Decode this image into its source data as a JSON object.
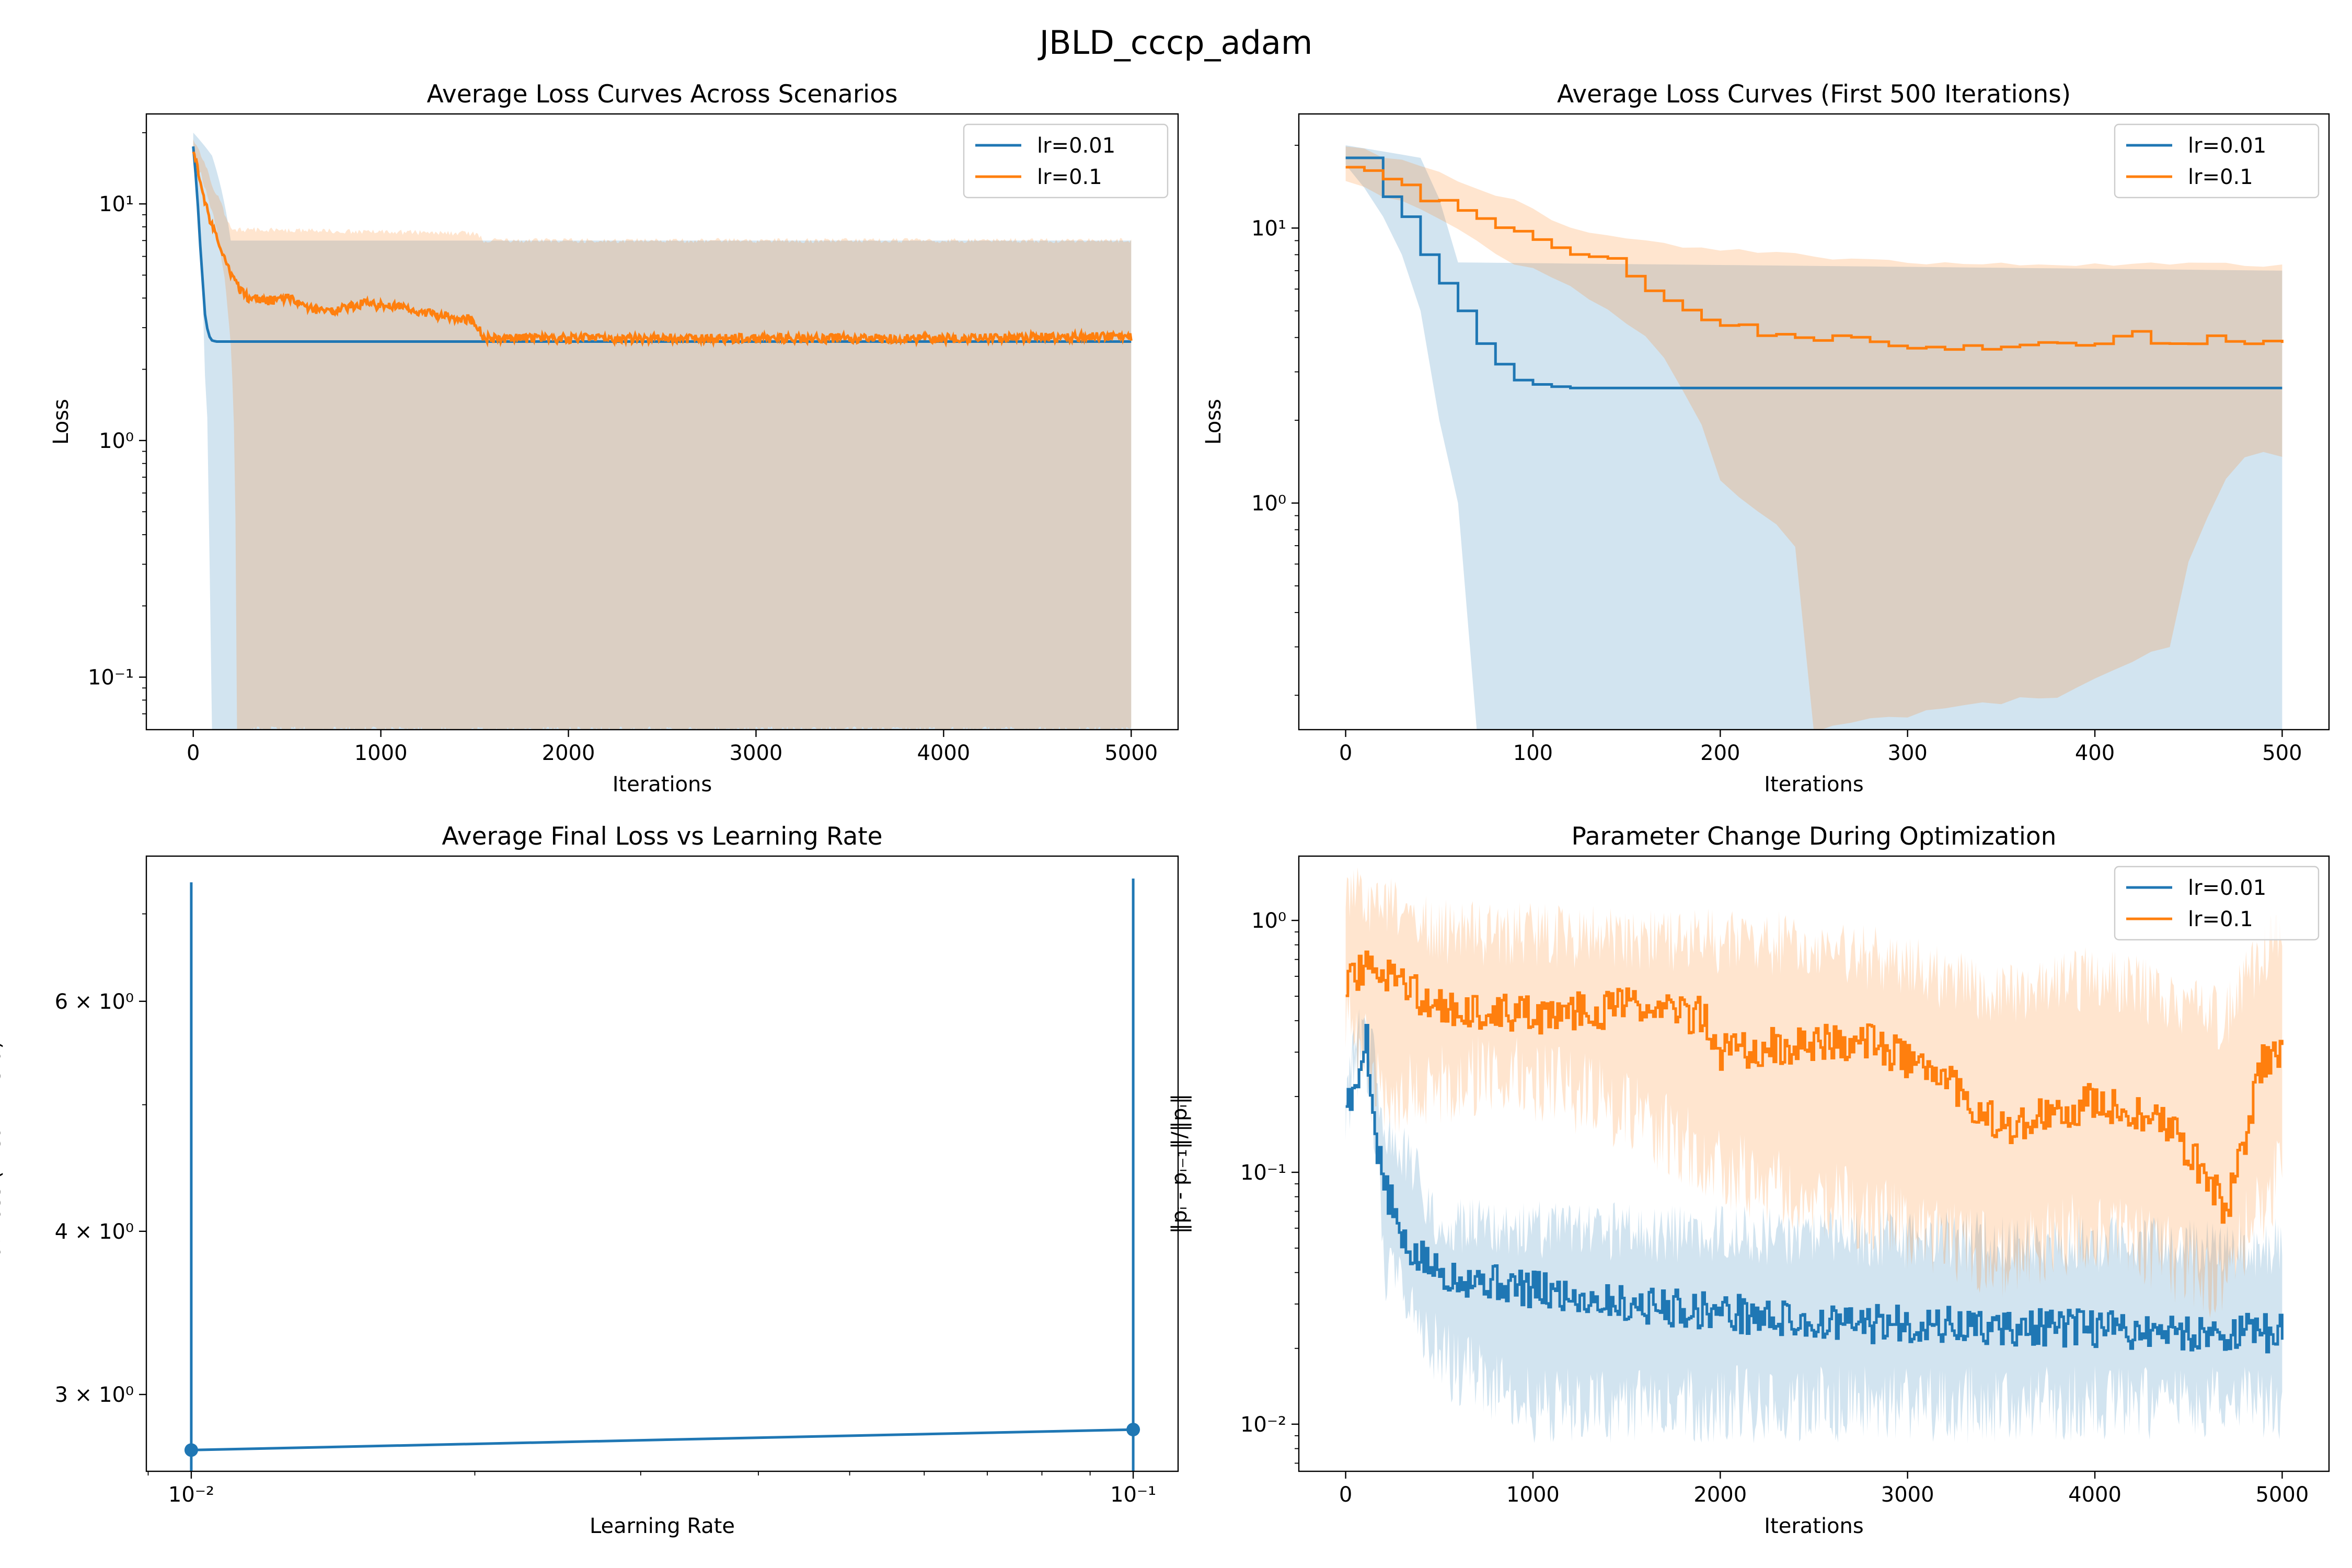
{
  "figure_title": "JBLD_cccp_adam",
  "colors": {
    "series_a": "#1f77b4",
    "series_b": "#ff7f0e",
    "band_a": "#c6dcee",
    "band_b": "#ffd8b5",
    "overlap": "#ddd1c3"
  },
  "chart_data": [
    {
      "id": "panel1",
      "type": "line",
      "title": "Average Loss Curves Across Scenarios",
      "xlabel": "Iterations",
      "ylabel": "Loss",
      "xscale": "linear",
      "yscale": "log",
      "xlim": [
        -250,
        5250
      ],
      "ylim": [
        0.06,
        24
      ],
      "xticks": [
        0,
        1000,
        2000,
        3000,
        4000,
        5000
      ],
      "xtick_labels": [
        "0",
        "1000",
        "2000",
        "3000",
        "4000",
        "5000"
      ],
      "yticks": [
        0.1,
        1,
        10
      ],
      "ytick_labels": [
        "10⁻¹",
        "10⁰",
        "10¹"
      ],
      "legend_position": "top-right",
      "series": [
        {
          "name": "lr=0.01",
          "color": "#1f77b4",
          "x": [
            0,
            20,
            40,
            60,
            80,
            100,
            120,
            5000
          ],
          "y": [
            17.5,
            11,
            6,
            3.5,
            2.8,
            2.65,
            2.62,
            2.62
          ],
          "band_upper": [
            [
              0,
              20
            ],
            [
              100,
              16
            ],
            [
              200,
              7
            ],
            [
              5000,
              7
            ]
          ],
          "band_lower": [
            [
              0,
              15
            ],
            [
              60,
              2
            ],
            [
              80,
              1
            ],
            [
              90,
              0.06
            ],
            [
              5000,
              0.06
            ]
          ]
        },
        {
          "name": "lr=0.1",
          "color": "#ff7f0e",
          "x": [
            0,
            50,
            100,
            150,
            200,
            250,
            300,
            400,
            500,
            600,
            700,
            800,
            900,
            1000,
            1100,
            1200,
            1300,
            1400,
            1500,
            1550,
            1600,
            2000,
            3000,
            4000,
            5000
          ],
          "y": [
            17,
            11,
            8,
            6.5,
            5,
            4.3,
            4.0,
            3.9,
            4.0,
            3.7,
            3.5,
            3.6,
            3.8,
            3.7,
            3.7,
            3.5,
            3.4,
            3.3,
            3.2,
            2.7,
            2.7,
            2.7,
            2.7,
            2.7,
            2.75
          ],
          "band_upper": [
            [
              0,
              19
            ],
            [
              100,
              12
            ],
            [
              200,
              7.8
            ],
            [
              1500,
              7.5
            ],
            [
              1550,
              7
            ],
            [
              5000,
              7
            ]
          ],
          "band_lower": [
            [
              0,
              16
            ],
            [
              150,
              6
            ],
            [
              200,
              2.5
            ],
            [
              230,
              0.06
            ],
            [
              5000,
              0.06
            ]
          ]
        }
      ]
    },
    {
      "id": "panel2",
      "type": "line",
      "title": "Average Loss Curves (First 500 Iterations)",
      "xlabel": "Iterations",
      "ylabel": "Loss",
      "xscale": "linear",
      "yscale": "log",
      "xlim": [
        -25,
        525
      ],
      "ylim": [
        0.15,
        26
      ],
      "xticks": [
        0,
        100,
        200,
        300,
        400,
        500
      ],
      "xtick_labels": [
        "0",
        "100",
        "200",
        "300",
        "400",
        "500"
      ],
      "yticks": [
        1,
        10
      ],
      "ytick_labels": [
        "10⁰",
        "10¹"
      ],
      "legend_position": "top-right",
      "series": [
        {
          "name": "lr=0.01",
          "color": "#1f77b4",
          "x": [
            0,
            10,
            20,
            30,
            40,
            50,
            60,
            70,
            80,
            90,
            100,
            110,
            120,
            500
          ],
          "y": [
            18,
            18,
            13,
            11,
            8,
            6.3,
            5,
            3.8,
            3.2,
            2.8,
            2.7,
            2.65,
            2.62,
            2.62
          ],
          "band_upper": [
            [
              0,
              20
            ],
            [
              40,
              18
            ],
            [
              60,
              7.5
            ],
            [
              500,
              7
            ]
          ],
          "band_lower": [
            [
              0,
              17
            ],
            [
              30,
              8
            ],
            [
              50,
              2
            ],
            [
              60,
              1
            ],
            [
              70,
              0.15
            ],
            [
              500,
              0.15
            ]
          ]
        },
        {
          "name": "lr=0.1",
          "color": "#ff7f0e",
          "x": [
            0,
            20,
            40,
            60,
            80,
            100,
            120,
            140,
            160,
            180,
            200,
            220,
            240,
            260,
            280,
            300,
            320,
            340,
            360,
            380,
            400,
            420,
            440,
            460,
            480,
            500
          ],
          "y": [
            17,
            15,
            13,
            12,
            10,
            9,
            8,
            7.5,
            6,
            5,
            4.5,
            4.2,
            4.0,
            4.1,
            3.8,
            3.6,
            3.7,
            3.6,
            3.9,
            3.8,
            3.9,
            4.1,
            3.8,
            4.0,
            3.8,
            3.7
          ],
          "band_upper": [
            [
              0,
              20
            ],
            [
              60,
              15
            ],
            [
              120,
              10
            ],
            [
              180,
              8.5
            ],
            [
              300,
              7.5
            ],
            [
              500,
              7.3
            ]
          ],
          "band_lower": [
            [
              0,
              15
            ],
            [
              80,
              8
            ],
            [
              160,
              4
            ],
            [
              200,
              1.2
            ],
            [
              240,
              0.7
            ],
            [
              250,
              0.15
            ],
            [
              380,
              0.2
            ],
            [
              440,
              0.3
            ],
            [
              480,
              1.5
            ],
            [
              500,
              1.5
            ]
          ]
        }
      ]
    },
    {
      "id": "panel3",
      "type": "line",
      "title": "Average Final Loss vs Learning Rate",
      "xlabel": "Learning Rate",
      "ylabel": "Final Loss (mean ± std)",
      "xscale": "log",
      "yscale": "log",
      "xlim": [
        0.00896,
        0.1116
      ],
      "ylim": [
        2.62,
        7.75
      ],
      "xticks": [
        0.01,
        0.1
      ],
      "xtick_labels": [
        "10⁻²",
        "10⁻¹"
      ],
      "yticks": [
        3,
        4,
        6
      ],
      "ytick_labels": [
        "3 × 10⁰",
        "4 × 10⁰",
        "6 × 10⁰"
      ],
      "series": [
        {
          "name": "",
          "color": "#1f77b4",
          "x": [
            0.01,
            0.1
          ],
          "y": [
            2.72,
            2.82
          ],
          "err_upper": [
            7.4,
            7.45
          ],
          "err_lower": [
            0.0,
            0.0
          ]
        }
      ]
    },
    {
      "id": "panel4",
      "type": "line",
      "title": "Parameter Change During Optimization",
      "xlabel": "Iterations",
      "ylabel": "‖pᵢ - pᵢ₋₁‖/‖pᵢ‖",
      "xscale": "linear",
      "yscale": "log",
      "xlim": [
        -250,
        5250
      ],
      "ylim": [
        0.0065,
        1.8
      ],
      "xticks": [
        0,
        1000,
        2000,
        3000,
        4000,
        5000
      ],
      "xtick_labels": [
        "0",
        "1000",
        "2000",
        "3000",
        "4000",
        "5000"
      ],
      "yticks": [
        0.01,
        0.1,
        1
      ],
      "ytick_labels": [
        "10⁻²",
        "10⁻¹",
        "10⁰"
      ],
      "legend_position": "top-right",
      "series": [
        {
          "name": "lr=0.01",
          "color": "#1f77b4",
          "x": [
            0,
            40,
            70,
            100,
            150,
            200,
            300,
            500,
            1000,
            1500,
            2000,
            2500,
            3000,
            3500,
            4000,
            4500,
            5000
          ],
          "y": [
            0.2,
            0.19,
            0.25,
            0.37,
            0.14,
            0.09,
            0.05,
            0.04,
            0.034,
            0.03,
            0.028,
            0.025,
            0.025,
            0.024,
            0.024,
            0.023,
            0.023
          ],
          "band_upper": [
            [
              0,
              0.22
            ],
            [
              100,
              0.4
            ],
            [
              200,
              0.15
            ],
            [
              500,
              0.06
            ],
            [
              5000,
              0.05
            ]
          ],
          "band_lower": [
            [
              0,
              0.18
            ],
            [
              100,
              0.3
            ],
            [
              200,
              0.04
            ],
            [
              500,
              0.018
            ],
            [
              1000,
              0.012
            ],
            [
              5000,
              0.012
            ]
          ]
        },
        {
          "name": "lr=0.1",
          "color": "#ff7f0e",
          "x": [
            0,
            100,
            500,
            1000,
            1500,
            1900,
            2000,
            2500,
            2800,
            3000,
            3300,
            3500,
            3700,
            4000,
            4300,
            4500,
            4700,
            4800,
            4900,
            5000
          ],
          "y": [
            0.55,
            0.65,
            0.45,
            0.42,
            0.45,
            0.42,
            0.3,
            0.33,
            0.33,
            0.28,
            0.2,
            0.15,
            0.17,
            0.19,
            0.17,
            0.12,
            0.07,
            0.14,
            0.28,
            0.32
          ],
          "band_upper": [
            [
              0,
              1.3
            ],
            [
              500,
              0.9
            ],
            [
              1500,
              0.85
            ],
            [
              2500,
              0.8
            ],
            [
              3500,
              0.5
            ],
            [
              4000,
              0.6
            ],
            [
              4700,
              0.4
            ],
            [
              5000,
              0.9
            ]
          ],
          "band_lower": [
            [
              0,
              0.4
            ],
            [
              200,
              0.2
            ],
            [
              800,
              0.25
            ],
            [
              1300,
              0.2
            ],
            [
              2000,
              0.1
            ],
            [
              2300,
              0.09
            ],
            [
              3000,
              0.06
            ],
            [
              3500,
              0.045
            ],
            [
              4000,
              0.06
            ],
            [
              4700,
              0.035
            ],
            [
              5000,
              0.1
            ]
          ]
        }
      ]
    }
  ]
}
